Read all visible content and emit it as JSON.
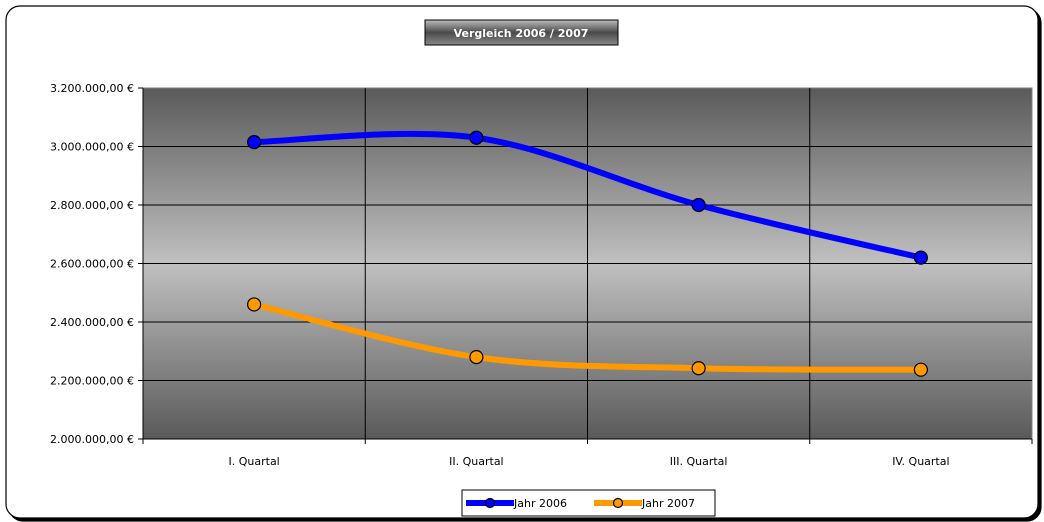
{
  "chart_data": {
    "type": "line",
    "title": "Vergleich 2006 / 2007",
    "categories": [
      "I. Quartal",
      "II. Quartal",
      "III. Quartal",
      "IV. Quartal"
    ],
    "series": [
      {
        "name": "Jahr 2006",
        "color": "#0000ff",
        "values": [
          3015000,
          3030000,
          2800000,
          2620000
        ]
      },
      {
        "name": "Jahr 2007",
        "color": "#ff9900",
        "values": [
          2460000,
          2280000,
          2242000,
          2237000
        ]
      }
    ],
    "ylim": [
      2000000,
      3200000
    ],
    "yticks": [
      2000000,
      2200000,
      2400000,
      2600000,
      2800000,
      3000000,
      3200000
    ],
    "ytick_labels": [
      "2.000.000,00 €",
      "2.200.000,00 €",
      "2.400.000,00 €",
      "2.600.000,00 €",
      "2.800.000,00 €",
      "3.000.000,00 €",
      "3.200.000,00 €"
    ],
    "xlabel": "",
    "ylabel": "",
    "grid": true,
    "legend_position": "bottom",
    "plot_background": "gray gradient"
  }
}
